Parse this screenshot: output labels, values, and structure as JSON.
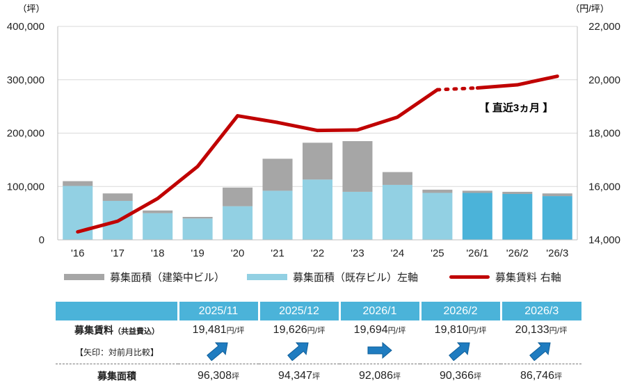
{
  "chart_data": {
    "type": "bar",
    "categories": [
      "'16",
      "'17",
      "'18",
      "'19",
      "'20",
      "'21",
      "'22",
      "'23",
      "'24",
      "'25",
      "'26/1",
      "'26/2",
      "'26/3"
    ],
    "series": [
      {
        "name": "募集面積（既存ビル）左軸",
        "axis": "left",
        "color": "#92d0e3",
        "values": [
          101000,
          73000,
          50000,
          40000,
          63000,
          92000,
          113000,
          90000,
          103000,
          88000,
          88000,
          86000,
          82000
        ]
      },
      {
        "name": "募集面積（建築中ビル）",
        "axis": "left",
        "color": "#a6a6a6",
        "values": [
          9000,
          14000,
          5000,
          3000,
          35000,
          60000,
          69000,
          95000,
          24000,
          6000,
          4000,
          4000,
          5000
        ]
      },
      {
        "name": "募集賃料 右軸",
        "axis": "right",
        "type": "line",
        "color": "#c00000",
        "values": [
          14300,
          14700,
          15550,
          16750,
          18650,
          18400,
          18100,
          18120,
          18600,
          19626,
          19694,
          19810,
          20133
        ]
      }
    ],
    "highlight_bar_color": "#4bb3d9",
    "highlight_categories": [
      "'26/1",
      "'26/2",
      "'26/3"
    ],
    "left_axis": {
      "unit": "（坪）",
      "min": 0,
      "max": 400000,
      "ticks": [
        "0",
        "100,000",
        "200,000",
        "300,000",
        "400,000"
      ]
    },
    "right_axis": {
      "unit": "（円/坪）",
      "min": 14000,
      "max": 22000,
      "ticks": [
        "14,000",
        "16,000",
        "18,000",
        "20,000",
        "22,000"
      ]
    },
    "annotation": "【 直近3ヵ月 】"
  },
  "legend": {
    "construction": "募集面積（建築中ビル）",
    "existing": "募集面積（既存ビル）左軸",
    "rent": "募集賃料 右軸"
  },
  "table": {
    "months": [
      "2025/11",
      "2025/12",
      "2026/1",
      "2026/2",
      "2026/3"
    ],
    "rent_label": "募集賃料",
    "rent_sub": "（共益費込）",
    "arrow_note": "【矢印：対前月比較】",
    "rents": [
      "19,481",
      "19,626",
      "19,694",
      "19,810",
      "20,133"
    ],
    "rent_unit": "円/坪",
    "arrows": [
      "up",
      "up",
      "flat",
      "up",
      "up"
    ],
    "area_label": "募集面積",
    "areas": [
      "96,308",
      "94,347",
      "92,086",
      "90,366",
      "86,746"
    ],
    "area_unit": "坪"
  }
}
